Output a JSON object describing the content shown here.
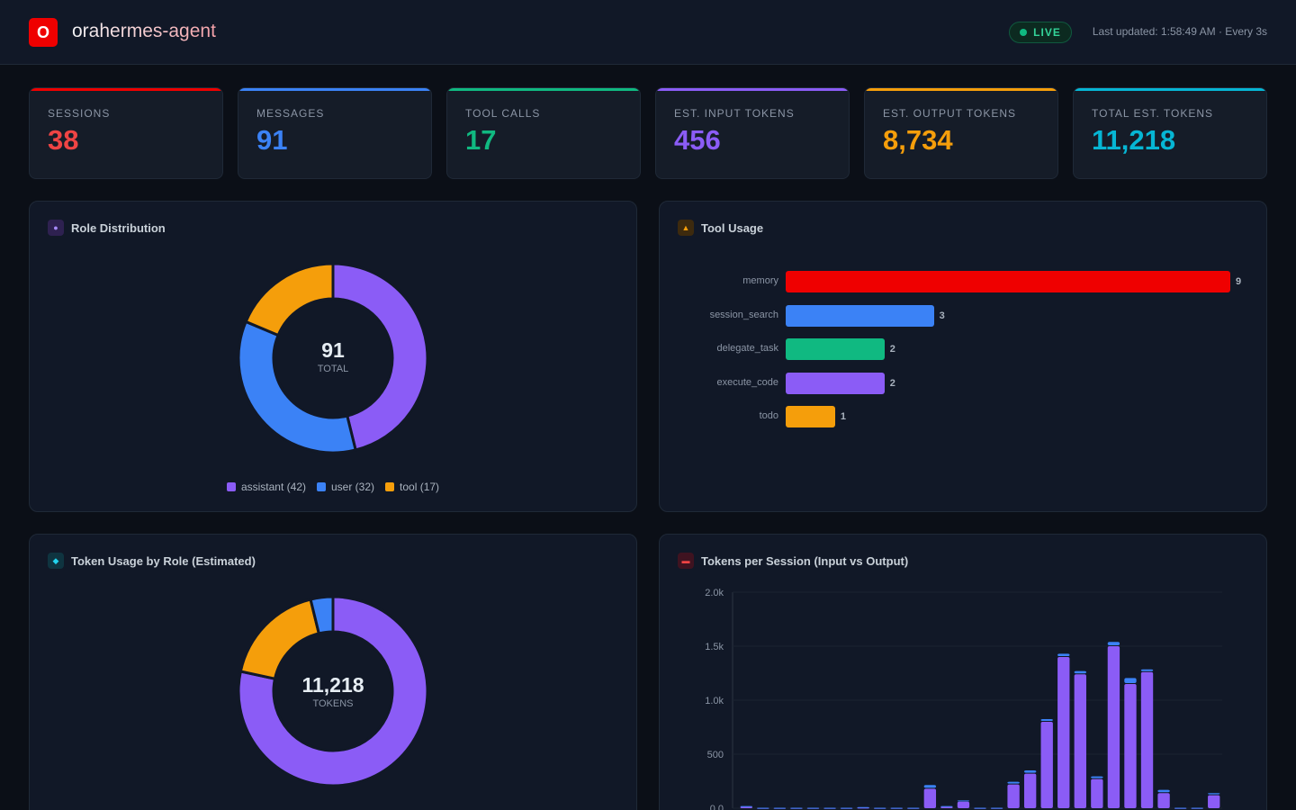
{
  "app": {
    "logo_letter": "O",
    "title": "orahermes-agent",
    "live_label": "LIVE",
    "last_updated": "Last updated: 1:58:49 AM · Every 3s"
  },
  "stats": [
    {
      "label": "SESSIONS",
      "value": "38",
      "color": "#ef4444",
      "bar": "#ef0000"
    },
    {
      "label": "MESSAGES",
      "value": "91",
      "color": "#3b82f6",
      "bar": "#3b82f6"
    },
    {
      "label": "TOOL CALLS",
      "value": "17",
      "color": "#10b981",
      "bar": "#10b981"
    },
    {
      "label": "EST. INPUT TOKENS",
      "value": "456",
      "color": "#8b5cf6",
      "bar": "#8b5cf6"
    },
    {
      "label": "EST. OUTPUT TOKENS",
      "value": "8,734",
      "color": "#f59e0b",
      "bar": "#f59e0b"
    },
    {
      "label": "TOTAL EST. TOKENS",
      "value": "11,218",
      "color": "#06b6d4",
      "bar": "#06b6d4"
    }
  ],
  "panels": {
    "role": {
      "title": "Role Distribution",
      "icon": "circle-icon",
      "glyph": "●",
      "center_value": "91",
      "center_label": "TOTAL"
    },
    "tool": {
      "title": "Tool Usage",
      "icon": "warning-icon",
      "glyph": "▲"
    },
    "token_role": {
      "title": "Token Usage by Role (Estimated)",
      "icon": "diamond-icon",
      "glyph": "◆",
      "center_value": "11,218",
      "center_label": "TOKENS"
    },
    "tps": {
      "title": "Tokens per Session (Input vs Output)",
      "icon": "minus-icon",
      "glyph": "▬"
    }
  },
  "chart_data": [
    {
      "type": "pie",
      "title": "Role Distribution",
      "categories": [
        "assistant",
        "user",
        "tool"
      ],
      "values": [
        42,
        32,
        17
      ],
      "legend": [
        "assistant (42)",
        "user (32)",
        "tool (17)"
      ],
      "colors": [
        "#8b5cf6",
        "#3b82f6",
        "#f59e0b"
      ]
    },
    {
      "type": "bar",
      "title": "Tool Usage",
      "categories": [
        "memory",
        "session_search",
        "delegate_task",
        "execute_code",
        "todo"
      ],
      "values": [
        9,
        3,
        2,
        2,
        1
      ],
      "colors": [
        "#ef0000",
        "#3b82f6",
        "#10b981",
        "#8b5cf6",
        "#f59e0b"
      ]
    },
    {
      "type": "pie",
      "title": "Token Usage by Role (Estimated)",
      "values": [
        8790,
        2000,
        428
      ],
      "colors": [
        "#8b5cf6",
        "#f59e0b",
        "#3b82f6"
      ]
    },
    {
      "type": "bar",
      "title": "Tokens per Session (Input vs Output)",
      "ylim": [
        0,
        2000
      ],
      "yticks": [
        "0.0",
        "500",
        "1.0k",
        "1.5k",
        "2.0k"
      ],
      "ytick_values": [
        0,
        500,
        1000,
        1500,
        2000
      ],
      "series": [
        {
          "values": [
            15,
            2,
            2,
            2,
            2,
            2,
            2,
            5,
            2,
            2,
            2,
            180,
            15,
            60,
            2,
            2,
            220,
            320,
            800,
            1400,
            1240,
            270,
            1500,
            1150,
            1260,
            140,
            2,
            2,
            120
          ],
          "color": "#8b5cf6"
        },
        {
          "values": [
            5,
            2,
            2,
            2,
            2,
            2,
            2,
            5,
            2,
            2,
            2,
            35,
            5,
            12,
            2,
            2,
            25,
            30,
            25,
            30,
            30,
            25,
            40,
            55,
            25,
            30,
            2,
            2,
            20
          ],
          "color": "#3b82f6"
        }
      ]
    }
  ]
}
